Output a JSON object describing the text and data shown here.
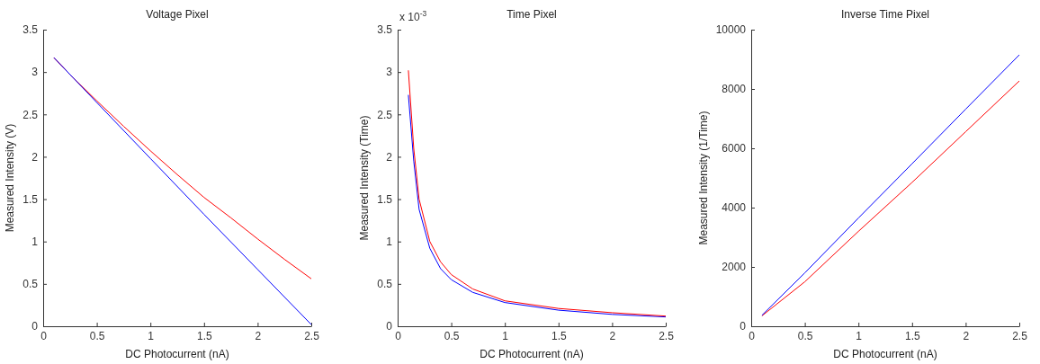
{
  "chart_data": [
    {
      "type": "line",
      "title": "Voltage Pixel",
      "xlabel": "DC Photocurrent (nA)",
      "ylabel": "Measured Intensity (V)",
      "xlim": [
        0,
        2.5
      ],
      "xticks": [
        0,
        0.5,
        1,
        1.5,
        2,
        2.5
      ],
      "ylim": [
        0,
        3.5
      ],
      "yticks": [
        0,
        0.5,
        1,
        1.5,
        2,
        2.5,
        3,
        3.5
      ],
      "series": [
        {
          "color": "#ff0000",
          "x": [
            0.1,
            0.25,
            0.5,
            0.75,
            1,
            1.25,
            1.5,
            1.75,
            2,
            2.25,
            2.5
          ],
          "values": [
            3.17,
            2.97,
            2.66,
            2.36,
            2.07,
            1.79,
            1.52,
            1.28,
            1.03,
            0.79,
            0.56
          ]
        },
        {
          "color": "#0000ff",
          "x": [
            0.1,
            0.5,
            1,
            1.5,
            2,
            2.5
          ],
          "values": [
            3.17,
            2.64,
            1.98,
            1.32,
            0.67,
            0.02
          ]
        }
      ]
    },
    {
      "type": "line",
      "title": "Time Pixel",
      "xlabel": "DC Photocurrent (nA)",
      "ylabel": "Measured Intensity (Time)",
      "annotations": [
        "x 10$^{-3}$"
      ],
      "xlim": [
        0,
        2.5
      ],
      "xticks": [
        0,
        0.5,
        1,
        1.5,
        2,
        2.5
      ],
      "ylim": [
        0,
        3.5
      ],
      "yticks": [
        0,
        0.5,
        1,
        1.5,
        2,
        2.5,
        3,
        3.5
      ],
      "series": [
        {
          "color": "#0000ff",
          "x": [
            0.1,
            0.15,
            0.2,
            0.3,
            0.4,
            0.5,
            0.7,
            1,
            1.5,
            2,
            2.5
          ],
          "values": [
            2.73,
            1.95,
            1.38,
            0.92,
            0.68,
            0.55,
            0.4,
            0.28,
            0.19,
            0.14,
            0.11
          ]
        },
        {
          "color": "#ff0000",
          "x": [
            0.1,
            0.15,
            0.2,
            0.3,
            0.4,
            0.5,
            0.7,
            1,
            1.5,
            2,
            2.5
          ],
          "values": [
            3.02,
            2.1,
            1.5,
            1.0,
            0.76,
            0.61,
            0.44,
            0.3,
            0.21,
            0.16,
            0.12
          ]
        }
      ]
    },
    {
      "type": "line",
      "title": "Inverse Time Pixel",
      "xlabel": "DC Photocurrent (nA)",
      "ylabel": "Measured Intensity (1/Time)",
      "xlim": [
        0,
        2.5
      ],
      "xticks": [
        0,
        0.5,
        1,
        1.5,
        2,
        2.5
      ],
      "ylim": [
        0,
        10000
      ],
      "yticks": [
        0,
        2000,
        4000,
        6000,
        8000,
        10000
      ],
      "series": [
        {
          "color": "#ff0000",
          "x": [
            0.1,
            0.5,
            1,
            1.5,
            2,
            2.5
          ],
          "values": [
            350,
            1500,
            3200,
            4850,
            6560,
            8270
          ]
        },
        {
          "color": "#0000ff",
          "x": [
            0.1,
            0.5,
            1,
            1.5,
            2,
            2.5
          ],
          "values": [
            370,
            1800,
            3650,
            5480,
            7320,
            9150
          ]
        }
      ]
    }
  ]
}
